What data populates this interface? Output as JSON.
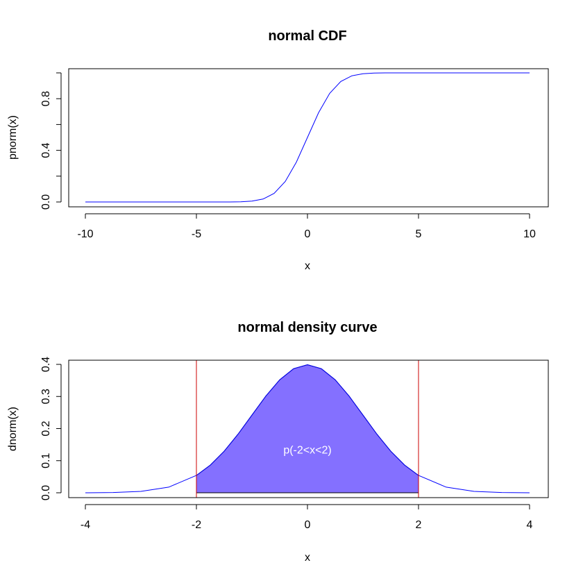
{
  "chart_data": [
    {
      "type": "line",
      "title": "normal CDF",
      "xlabel": "x",
      "ylabel": "pnorm(x)",
      "xlim": [
        -10,
        10
      ],
      "ylim": [
        0,
        1
      ],
      "x_ticks": [
        -10,
        -5,
        0,
        5,
        10
      ],
      "y_ticks": [
        0,
        0.2,
        0.4,
        0.6,
        0.8,
        1.0
      ],
      "y_tick_labels": [
        "0.0",
        "",
        "0.4",
        "",
        "0.8",
        ""
      ],
      "grid": false,
      "series": [
        {
          "color": "#0000ff",
          "x": [
            -10,
            -9,
            -8,
            -7,
            -6,
            -5,
            -4,
            -3.5,
            -3,
            -2.5,
            -2,
            -1.5,
            -1,
            -0.5,
            0,
            0.5,
            1,
            1.5,
            2,
            2.5,
            3,
            3.5,
            4,
            5,
            6,
            7,
            8,
            9,
            10
          ],
          "y": [
            0,
            0,
            0,
            0,
            0,
            0,
            3e-05,
            0.0002,
            0.0013,
            0.0062,
            0.0228,
            0.0668,
            0.1587,
            0.3085,
            0.5,
            0.6915,
            0.8413,
            0.9332,
            0.9772,
            0.9938,
            0.9987,
            0.9998,
            0.99997,
            1,
            1,
            1,
            1,
            1,
            1
          ]
        }
      ]
    },
    {
      "type": "area",
      "title": "normal density curve",
      "xlabel": "x",
      "ylabel": "dnorm(x)",
      "xlim": [
        -4,
        4
      ],
      "ylim": [
        0,
        0.4
      ],
      "x_ticks": [
        -4,
        -2,
        0,
        2,
        4
      ],
      "y_ticks": [
        0,
        0.1,
        0.2,
        0.3,
        0.4
      ],
      "y_tick_labels": [
        "0.0",
        "0.1",
        "0.2",
        "0.3",
        "0.4"
      ],
      "grid": false,
      "series": [
        {
          "color": "#0000ff",
          "x": [
            -4,
            -3.5,
            -3,
            -2.5,
            -2,
            -1.75,
            -1.5,
            -1.25,
            -1,
            -0.75,
            -0.5,
            -0.25,
            0,
            0.25,
            0.5,
            0.75,
            1,
            1.25,
            1.5,
            1.75,
            2,
            2.5,
            3,
            3.5,
            4
          ],
          "y": [
            0.0001,
            0.0009,
            0.0044,
            0.0175,
            0.054,
            0.0863,
            0.1295,
            0.1826,
            0.242,
            0.3011,
            0.3521,
            0.3867,
            0.3989,
            0.3867,
            0.3521,
            0.3011,
            0.242,
            0.1826,
            0.1295,
            0.0863,
            0.054,
            0.0175,
            0.0044,
            0.0009,
            0.0001
          ]
        }
      ],
      "shaded_region": {
        "from": -2,
        "to": 2,
        "fill": "#8470ff"
      },
      "vertical_lines": [
        {
          "x": -2,
          "color": "#cd0000"
        },
        {
          "x": 2,
          "color": "#cd0000"
        }
      ],
      "annotation": {
        "text": "p(-2<x<2)",
        "x": 0,
        "y": 0.135,
        "color": "#ffffff"
      }
    }
  ]
}
